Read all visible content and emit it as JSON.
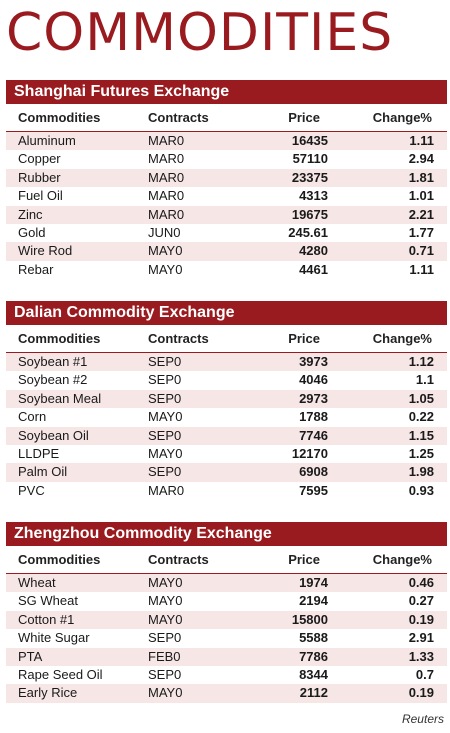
{
  "title": "COMMODITIES",
  "columns": {
    "c1": "Commodities",
    "c2": "Contracts",
    "c3": "Price",
    "c4": "Change%"
  },
  "sections": [
    {
      "name": "Shanghai Futures Exchange",
      "rows": [
        [
          "Aluminum",
          "MAR0",
          "16435",
          "1.11"
        ],
        [
          "Copper",
          "MAR0",
          "57110",
          "2.94"
        ],
        [
          "Rubber",
          "MAR0",
          "23375",
          "1.81"
        ],
        [
          "Fuel Oil",
          "MAR0",
          "4313",
          "1.01"
        ],
        [
          "Zinc",
          "MAR0",
          "19675",
          "2.21"
        ],
        [
          "Gold",
          "JUN0",
          "245.61",
          "1.77"
        ],
        [
          "Wire Rod",
          "MAY0",
          "4280",
          "0.71"
        ],
        [
          "Rebar",
          "MAY0",
          "4461",
          "1.11"
        ]
      ]
    },
    {
      "name": "Dalian Commodity Exchange",
      "rows": [
        [
          "Soybean #1",
          "SEP0",
          "3973",
          "1.12"
        ],
        [
          "Soybean #2",
          "SEP0",
          "4046",
          "1.1"
        ],
        [
          "Soybean Meal",
          "SEP0",
          "2973",
          "1.05"
        ],
        [
          "Corn",
          "MAY0",
          "1788",
          "0.22"
        ],
        [
          "Soybean Oil",
          "SEP0",
          "7746",
          "1.15"
        ],
        [
          "LLDPE",
          "MAY0",
          "12170",
          "1.25"
        ],
        [
          "Palm Oil",
          "SEP0",
          "6908",
          "1.98"
        ],
        [
          "PVC",
          "MAR0",
          "7595",
          "0.93"
        ]
      ]
    },
    {
      "name": "Zhengzhou Commodity Exchange",
      "rows": [
        [
          "Wheat",
          "MAY0",
          "1974",
          "0.46"
        ],
        [
          "SG Wheat",
          "MAY0",
          "2194",
          "0.27"
        ],
        [
          "Cotton #1",
          "MAY0",
          "15800",
          "0.19"
        ],
        [
          "White Sugar",
          "SEP0",
          "5588",
          "2.91"
        ],
        [
          "PTA",
          "FEB0",
          "7786",
          "1.33"
        ],
        [
          "Rape Seed Oil",
          "SEP0",
          "8344",
          "0.7"
        ],
        [
          "Early Rice",
          "MAY0",
          "2112",
          "0.19"
        ]
      ]
    }
  ],
  "source": "Reuters"
}
